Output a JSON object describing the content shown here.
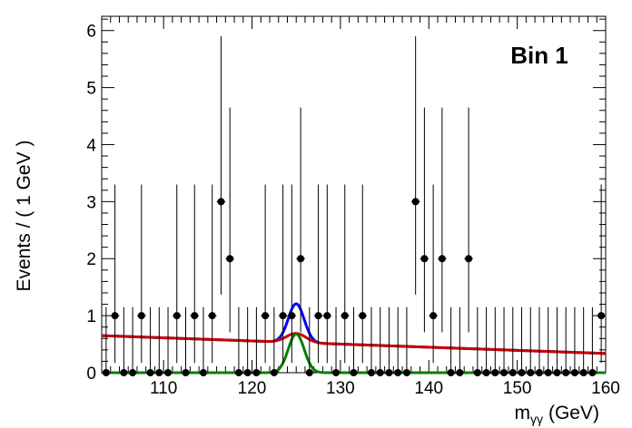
{
  "chart_data": {
    "type": "scatter",
    "annotation": "Bin 1",
    "xlabel": {
      "main": "m",
      "sub": "γγ",
      "unit": "(GeV)"
    },
    "ylabel": "Events / ( 1 GeV )",
    "xlim": [
      103,
      160
    ],
    "ylim": [
      0,
      6.25
    ],
    "xticks": [
      110,
      120,
      130,
      140,
      150,
      160
    ],
    "yticks": [
      0,
      1,
      2,
      3,
      4,
      5,
      6
    ],
    "grid": false,
    "data_points": {
      "x": [
        103.5,
        104.5,
        105.5,
        106.5,
        107.5,
        108.5,
        109.5,
        110.5,
        111.5,
        112.5,
        113.5,
        114.5,
        115.5,
        116.5,
        117.5,
        118.5,
        119.5,
        120.5,
        121.5,
        122.5,
        123.5,
        124.5,
        125.5,
        126.5,
        127.5,
        128.5,
        129.5,
        130.5,
        131.5,
        132.5,
        133.5,
        134.5,
        135.5,
        136.5,
        137.5,
        138.5,
        139.5,
        140.5,
        141.5,
        142.5,
        143.5,
        144.5,
        145.5,
        146.5,
        147.5,
        148.5,
        149.5,
        150.5,
        151.5,
        152.5,
        153.5,
        154.5,
        155.5,
        156.5,
        157.5,
        158.5,
        159.5
      ],
      "y": [
        0,
        1,
        0,
        0,
        1,
        0,
        0,
        0,
        1,
        0,
        1,
        0,
        1,
        3,
        2,
        0,
        0,
        0,
        1,
        0,
        1,
        1,
        2,
        0,
        1,
        1,
        0,
        1,
        0,
        1,
        0,
        0,
        0,
        0,
        0,
        3,
        2,
        1,
        2,
        0,
        0,
        2,
        0,
        0,
        0,
        0,
        0,
        0,
        0,
        0,
        0,
        0,
        0,
        0,
        0,
        0,
        1
      ],
      "err_up": [
        1.15,
        2.3,
        1.15,
        1.15,
        2.3,
        1.15,
        1.15,
        1.15,
        2.3,
        1.15,
        2.3,
        1.15,
        2.3,
        2.9,
        2.65,
        1.15,
        1.15,
        1.15,
        2.3,
        1.15,
        2.3,
        2.3,
        2.65,
        1.15,
        2.3,
        2.3,
        1.15,
        2.3,
        1.15,
        2.3,
        1.15,
        1.15,
        1.15,
        1.15,
        1.15,
        2.9,
        2.65,
        2.3,
        2.65,
        1.15,
        1.15,
        2.65,
        1.15,
        1.15,
        1.15,
        1.15,
        1.15,
        1.15,
        1.15,
        1.15,
        1.15,
        1.15,
        1.15,
        1.15,
        1.15,
        1.15,
        2.3
      ],
      "err_down": [
        0,
        0.83,
        0,
        0,
        0.83,
        0,
        0,
        0,
        0.83,
        0,
        0.83,
        0,
        0.83,
        1.63,
        1.29,
        0,
        0,
        0,
        0.83,
        0,
        0.83,
        0.83,
        1.29,
        0,
        0.83,
        0.83,
        0,
        0.83,
        0,
        0.83,
        0,
        0,
        0,
        0,
        0,
        1.63,
        1.29,
        0.83,
        1.29,
        0,
        0,
        1.29,
        0,
        0,
        0,
        0,
        0,
        0,
        0,
        0,
        0,
        0,
        0,
        0,
        0,
        0,
        0.83
      ]
    },
    "series": [
      {
        "color": "#0000ff",
        "components": {
          "background": [
            0.65,
            -0.0055
          ],
          "signal": {
            "amplitude": 0.68,
            "mean": 125.0,
            "sigma": 0.9
          }
        }
      },
      {
        "color": "#cc0000",
        "components": {
          "background": [
            0.65,
            -0.0055
          ],
          "signal": {
            "amplitude": 0.16,
            "mean": 125.0,
            "sigma": 1.1
          }
        }
      },
      {
        "color": "#008000",
        "components": {
          "signal": {
            "amplitude": 0.68,
            "mean": 125.0,
            "sigma": 0.9
          }
        }
      }
    ]
  }
}
